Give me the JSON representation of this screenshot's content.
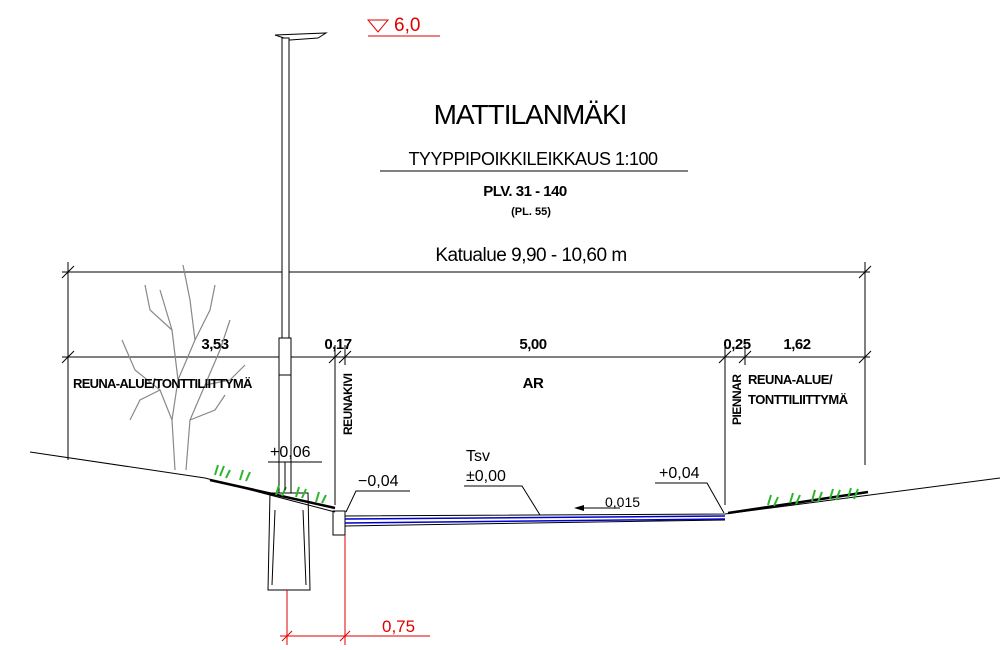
{
  "elevation": "6,0",
  "header": {
    "title": "MATTILANMÄKI",
    "subtitle": "TYYPPIPOIKKILEIKKAUS 1:100",
    "station": "PLV. 31 - 140",
    "station_note": "(PL. 55)"
  },
  "total_width": "Katualue 9,90 - 10,60 m",
  "dimensions": [
    "3,53",
    "0,17",
    "5,00",
    "0,25",
    "1,62"
  ],
  "zones": {
    "left": "REUNA-ALUE/TONTTILIITTYMÄ",
    "road": "AR",
    "curb": "REUNAKIVI",
    "shoulder": "PIENNAR",
    "right": [
      "REUNA-ALUE/",
      "TONTTILIITTYMÄ"
    ]
  },
  "levels": {
    "left_edge": "+0,06",
    "curb": "−0,04",
    "centre_name": "Tsv",
    "centre": "±0,00",
    "slope": "0,015",
    "right_edge": "+0,04"
  },
  "offset": "0,75"
}
